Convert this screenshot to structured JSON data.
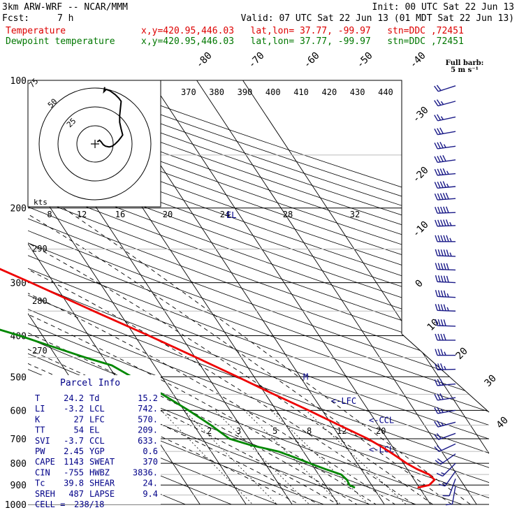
{
  "header": {
    "model": "3km ARW-WRF -- NCAR/MMM",
    "init": "Init: 00 UTC Sat 22 Jun 13",
    "fcst_label": "Fcst:",
    "fcst_value": "7 h",
    "valid": "Valid: 07 UTC Sat 22 Jun 13 (01 MDT Sat 22 Jun 13)",
    "lines": [
      {
        "label": "Temperature",
        "location": "x,y=420.95,446.03   lat,lon= 37.77, -99.97   stn=DDC ,72451",
        "color": "#dd0000"
      },
      {
        "label": "Dewpoint temperature",
        "location": "x,y=420.95,446.03   lat,lon= 37.77, -99.97   stn=DDC ,72451",
        "color": "#007700"
      }
    ]
  },
  "barb_legend": {
    "title": "Full barb:",
    "units": "5 m s⁻¹"
  },
  "chart_data": {
    "type": "line",
    "title": "",
    "pressure_levels": [
      "100",
      "200",
      "300",
      "400",
      "500",
      "600",
      "700",
      "800",
      "900",
      "1000"
    ],
    "isotherm_labels": [
      "-80",
      "-70",
      "-60",
      "-50",
      "-40",
      "-30",
      "-20",
      "-10",
      "0",
      "10",
      "20",
      "30",
      "40"
    ],
    "theta_labels": [
      "370",
      "380",
      "390",
      "400",
      "410",
      "420",
      "430",
      "440"
    ],
    "theta_side_labels": [
      "290",
      "280",
      "270"
    ],
    "mixing_ratio_labels": [
      "2",
      "3",
      "5",
      "8",
      "12",
      "20"
    ],
    "hodograph": {
      "units_label": "kts",
      "ring_labels": [
        "25",
        "50",
        "75"
      ],
      "speed_ticks": [
        "8",
        "12",
        "16",
        "20",
        "24",
        "28",
        "32"
      ],
      "el_label": "EL",
      "points": [
        [
          3,
          -3
        ],
        [
          5,
          -4
        ],
        [
          6,
          -5
        ],
        [
          8,
          -3
        ],
        [
          11,
          1
        ],
        [
          14,
          3
        ],
        [
          19,
          4
        ],
        [
          23,
          3
        ],
        [
          27,
          0
        ],
        [
          31,
          -4
        ],
        [
          35,
          -9
        ],
        [
          37,
          -12
        ],
        [
          35,
          -20
        ],
        [
          33,
          -29
        ],
        [
          33,
          -38
        ],
        [
          34,
          -48
        ],
        [
          35,
          -57
        ],
        [
          32,
          -61
        ],
        [
          27,
          -66
        ],
        [
          20,
          -71
        ],
        [
          15,
          -73
        ],
        [
          12,
          -70
        ],
        [
          13,
          -76
        ]
      ]
    },
    "level_markers": [
      {
        "label": "M",
        "pressure": 500
      },
      {
        "label": "<-LFC",
        "pressure": 570
      },
      {
        "label": "<-CCL",
        "pressure": 633
      },
      {
        "label": "<-LCL",
        "pressure": 742
      }
    ],
    "series": [
      {
        "name": "Temperature",
        "color": "#ee0000",
        "points": [
          [
            913,
            29.6
          ],
          [
            900,
            32.5
          ],
          [
            875,
            34.4
          ],
          [
            850,
            34.0
          ],
          [
            825,
            32.1
          ],
          [
            800,
            30.7
          ],
          [
            775,
            29.7
          ],
          [
            750,
            28.6
          ],
          [
            725,
            27.3
          ],
          [
            700,
            25.8
          ],
          [
            650,
            21.5
          ],
          [
            600,
            17.0
          ],
          [
            550,
            11.8
          ],
          [
            500,
            6.4
          ],
          [
            450,
            0.2
          ],
          [
            400,
            -6.9
          ],
          [
            350,
            -15.4
          ],
          [
            300,
            -24.9
          ],
          [
            275,
            -30.5
          ],
          [
            250,
            -36.2
          ],
          [
            225,
            -42.4
          ],
          [
            200,
            -48.1
          ],
          [
            180,
            -53.2
          ],
          [
            165,
            -57.0
          ],
          [
            150,
            -58.9
          ],
          [
            140,
            -57.9
          ],
          [
            130,
            -56.5
          ],
          [
            120,
            -56.5
          ],
          [
            110,
            -57.5
          ],
          [
            100,
            -59.5
          ]
        ]
      },
      {
        "name": "Dewpoint temperature",
        "color": "#008800",
        "points": [
          [
            913,
            16.0
          ],
          [
            900,
            15.2
          ],
          [
            875,
            15.4
          ],
          [
            850,
            14.9
          ],
          [
            825,
            12.2
          ],
          [
            800,
            9.7
          ],
          [
            775,
            7.3
          ],
          [
            750,
            4.6
          ],
          [
            725,
            -0.5
          ],
          [
            700,
            -4.2
          ],
          [
            650,
            -6.3
          ],
          [
            600,
            -9.0
          ],
          [
            550,
            -12.4
          ],
          [
            500,
            -16.5
          ],
          [
            470,
            -19.2
          ],
          [
            450,
            -23.9
          ],
          [
            420,
            -30.4
          ],
          [
            400,
            -34.9
          ],
          [
            370,
            -43.3
          ],
          [
            350,
            -48.2
          ],
          [
            340,
            -51.6
          ],
          [
            320,
            -50.4
          ],
          [
            300,
            -48.8
          ],
          [
            280,
            -48.5
          ],
          [
            260,
            -49.1
          ],
          [
            240,
            -51.5
          ],
          [
            220,
            -55.2
          ],
          [
            200,
            -60.4
          ],
          [
            180,
            -65.5
          ],
          [
            160,
            -71.0
          ],
          [
            140,
            -75.0
          ],
          [
            120,
            -78.5
          ],
          [
            100,
            -83.5
          ]
        ]
      }
    ],
    "wind_barbs_kts": [
      {
        "pressure": 905,
        "speed": 10,
        "dir": 190
      },
      {
        "pressure": 870,
        "speed": 12,
        "dir": 200
      },
      {
        "pressure": 835,
        "speed": 15,
        "dir": 215
      },
      {
        "pressure": 800,
        "speed": 18,
        "dir": 225
      },
      {
        "pressure": 760,
        "speed": 20,
        "dir": 235
      },
      {
        "pressure": 720,
        "speed": 22,
        "dir": 245
      },
      {
        "pressure": 680,
        "speed": 22,
        "dir": 250
      },
      {
        "pressure": 640,
        "speed": 25,
        "dir": 255
      },
      {
        "pressure": 600,
        "speed": 27,
        "dir": 260
      },
      {
        "pressure": 560,
        "speed": 30,
        "dir": 262
      },
      {
        "pressure": 520,
        "speed": 32,
        "dir": 265
      },
      {
        "pressure": 480,
        "speed": 35,
        "dir": 268
      },
      {
        "pressure": 445,
        "speed": 38,
        "dir": 270
      },
      {
        "pressure": 410,
        "speed": 40,
        "dir": 270
      },
      {
        "pressure": 380,
        "speed": 42,
        "dir": 272
      },
      {
        "pressure": 350,
        "speed": 45,
        "dir": 272
      },
      {
        "pressure": 325,
        "speed": 48,
        "dir": 273
      },
      {
        "pressure": 300,
        "speed": 50,
        "dir": 273
      },
      {
        "pressure": 280,
        "speed": 52,
        "dir": 272
      },
      {
        "pressure": 260,
        "speed": 55,
        "dir": 272
      },
      {
        "pressure": 240,
        "speed": 55,
        "dir": 270
      },
      {
        "pressure": 220,
        "speed": 55,
        "dir": 268
      },
      {
        "pressure": 205,
        "speed": 52,
        "dir": 268
      },
      {
        "pressure": 190,
        "speed": 52,
        "dir": 266
      },
      {
        "pressure": 178,
        "speed": 48,
        "dir": 265
      },
      {
        "pressure": 166,
        "speed": 45,
        "dir": 265
      },
      {
        "pressure": 154,
        "speed": 40,
        "dir": 262
      },
      {
        "pressure": 143,
        "speed": 35,
        "dir": 262
      },
      {
        "pressure": 132,
        "speed": 32,
        "dir": 260
      },
      {
        "pressure": 122,
        "speed": 28,
        "dir": 258
      },
      {
        "pressure": 112,
        "speed": 25,
        "dir": 255
      },
      {
        "pressure": 103,
        "speed": 22,
        "dir": 252
      }
    ]
  },
  "parcel_info": {
    "title": "Parcel Info",
    "rows": [
      [
        "T  ",
        "24.2",
        "Td ",
        "15.2"
      ],
      [
        "LI ",
        "-3.2",
        "LCL",
        "742."
      ],
      [
        "K  ",
        "27",
        "LFC",
        "570."
      ],
      [
        "TT ",
        "54",
        "EL ",
        "209."
      ],
      [
        "SVI",
        "-3.7",
        "CCL",
        "633."
      ],
      [
        "PW ",
        "2.45",
        "YGP",
        "0.6"
      ],
      [
        "CAPE",
        "1143",
        "SWEAT",
        "370"
      ],
      [
        "CIN",
        "-755",
        "HWBZ",
        "3836."
      ],
      [
        "Tc ",
        "39.8",
        "SHEAR",
        "24."
      ],
      [
        "SREH",
        "487",
        "LAPSE",
        "9.4"
      ]
    ],
    "cell_label": "CELL =",
    "cell_value": "238/18"
  }
}
